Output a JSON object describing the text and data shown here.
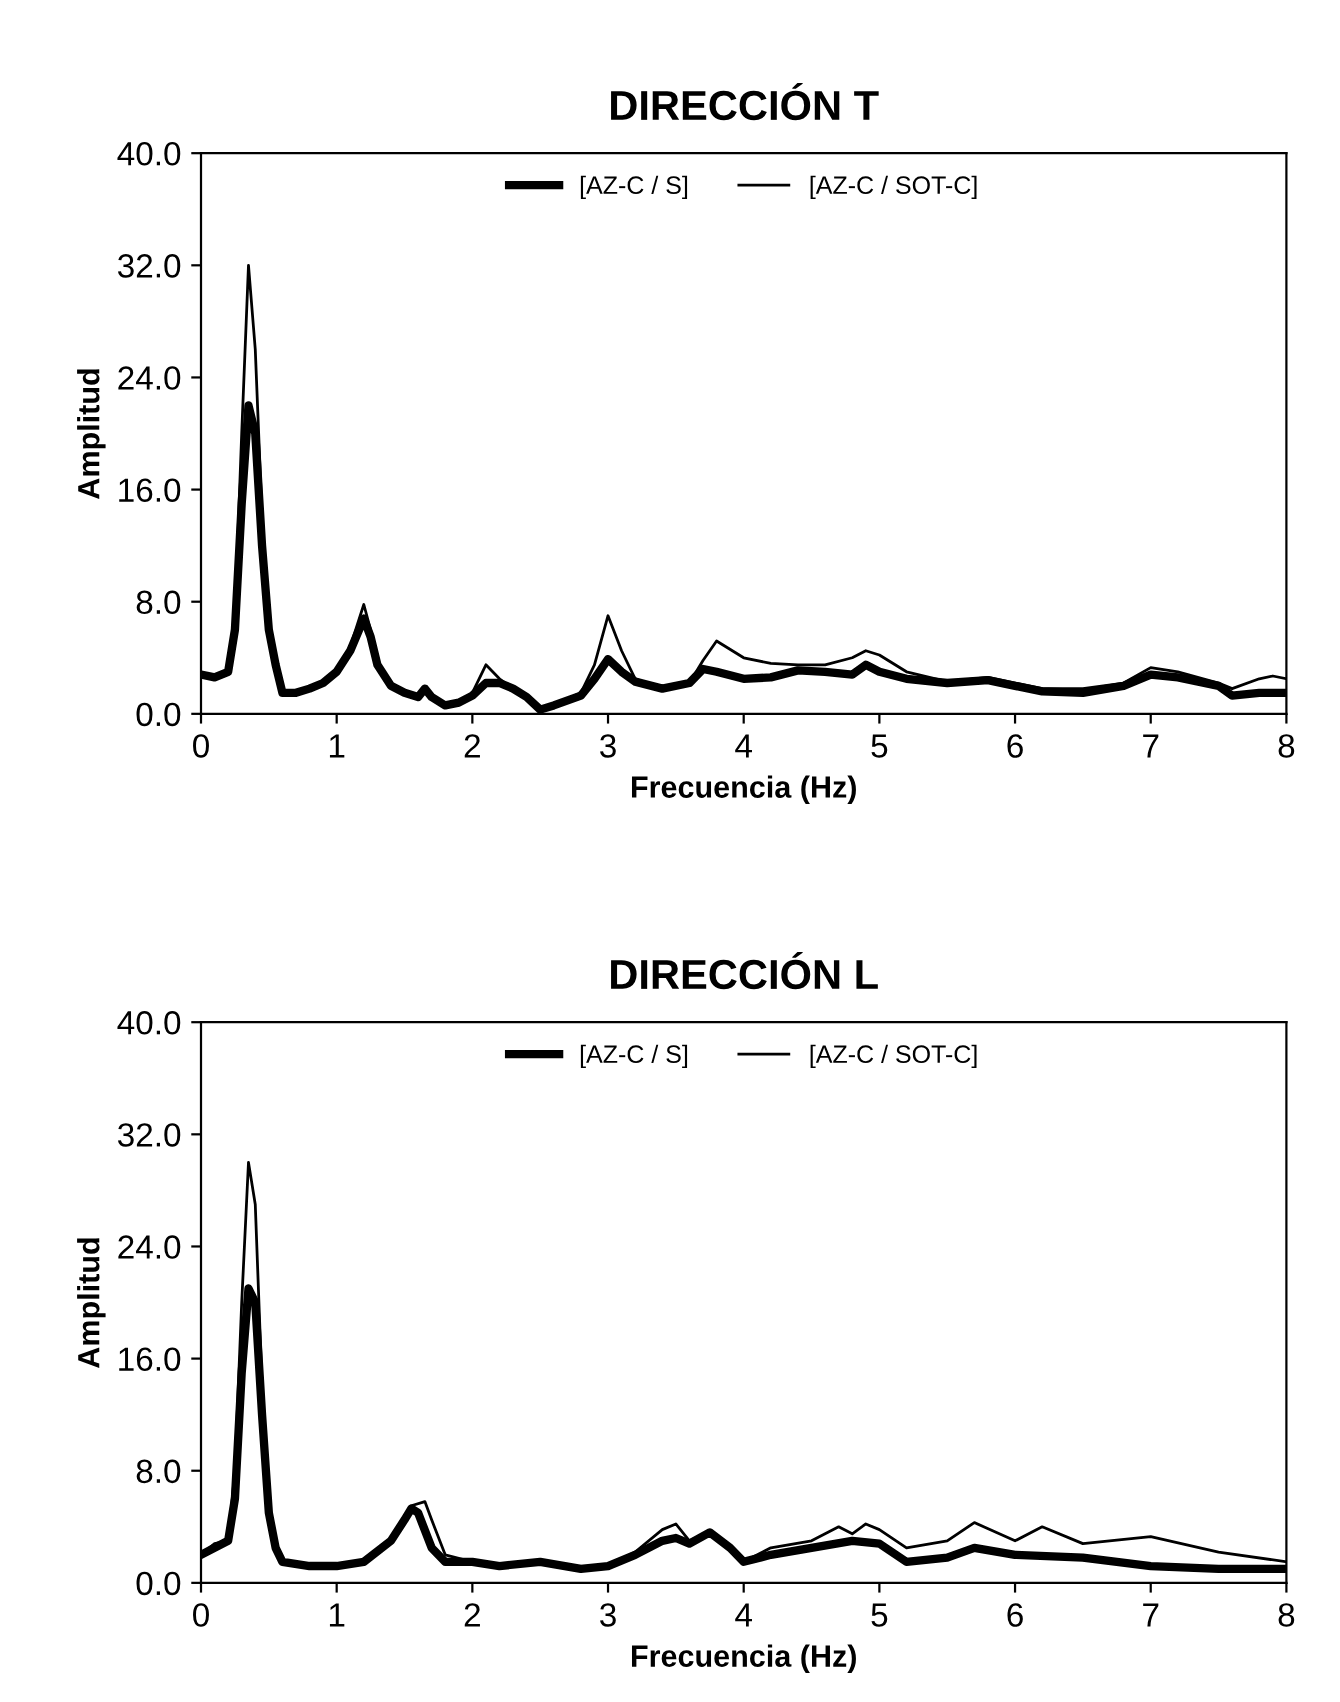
{
  "chart_data": [
    {
      "type": "line",
      "title": "DIRECCIÓN T",
      "xlabel": "Frecuencia (Hz)",
      "ylabel": "Amplitud",
      "xlim": [
        0,
        8
      ],
      "xticks": [
        0,
        1,
        2,
        3,
        4,
        5,
        6,
        7,
        8
      ],
      "ylim": [
        0,
        40
      ],
      "yticks": [
        {
          "value": 0,
          "label": "0.0"
        },
        {
          "value": 8,
          "label": "8.0"
        },
        {
          "value": 16,
          "label": "16.0"
        },
        {
          "value": 24,
          "label": "24.0"
        },
        {
          "value": 32,
          "label": "32.0"
        },
        {
          "value": 40,
          "label": "40.0"
        }
      ],
      "grid": false,
      "legend": "top",
      "marker": "none",
      "line_style": "solid",
      "series": [
        {
          "name": "[AZ-C / S]",
          "color": "#000000",
          "x": [
            0,
            0.1,
            0.2,
            0.25,
            0.3,
            0.35,
            0.4,
            0.45,
            0.5,
            0.55,
            0.6,
            0.7,
            0.8,
            0.9,
            1.0,
            1.1,
            1.2,
            1.25,
            1.3,
            1.4,
            1.5,
            1.6,
            1.65,
            1.7,
            1.8,
            1.9,
            2.0,
            2.1,
            2.2,
            2.3,
            2.4,
            2.5,
            2.6,
            2.8,
            2.9,
            3.0,
            3.1,
            3.2,
            3.4,
            3.6,
            3.7,
            3.8,
            4.0,
            4.2,
            4.4,
            4.6,
            4.8,
            4.9,
            5.0,
            5.2,
            5.5,
            5.8,
            6.0,
            6.2,
            6.5,
            6.8,
            7.0,
            7.2,
            7.5,
            7.6,
            7.8,
            8.0
          ],
          "values": [
            2.8,
            2.6,
            3.0,
            6,
            15,
            22,
            20,
            12,
            6,
            3.5,
            1.5,
            1.5,
            1.8,
            2.2,
            3.0,
            4.5,
            6.8,
            5.5,
            3.5,
            2.0,
            1.5,
            1.2,
            1.8,
            1.2,
            0.6,
            0.8,
            1.3,
            2.2,
            2.2,
            1.8,
            1.2,
            0.3,
            0.6,
            1.3,
            2.5,
            3.9,
            3.0,
            2.3,
            1.8,
            2.2,
            3.2,
            3.0,
            2.5,
            2.6,
            3.1,
            3.0,
            2.8,
            3.5,
            3.0,
            2.5,
            2.2,
            2.4,
            2.0,
            1.6,
            1.5,
            2.0,
            2.8,
            2.6,
            2.0,
            1.3,
            1.5,
            1.5
          ]
        },
        {
          "name": "[AZ-C / SOT-C]",
          "color": "#000000",
          "x": [
            0,
            0.1,
            0.2,
            0.25,
            0.3,
            0.35,
            0.4,
            0.45,
            0.5,
            0.55,
            0.6,
            0.7,
            0.8,
            0.9,
            1.0,
            1.1,
            1.2,
            1.25,
            1.3,
            1.4,
            1.5,
            1.6,
            1.65,
            1.7,
            1.8,
            1.9,
            2.0,
            2.1,
            2.2,
            2.3,
            2.4,
            2.5,
            2.6,
            2.8,
            2.9,
            3.0,
            3.1,
            3.2,
            3.4,
            3.6,
            3.7,
            3.8,
            4.0,
            4.2,
            4.4,
            4.6,
            4.8,
            4.9,
            5.0,
            5.2,
            5.5,
            5.8,
            6.0,
            6.2,
            6.5,
            6.8,
            7.0,
            7.2,
            7.5,
            7.6,
            7.8,
            7.9,
            8.0
          ],
          "values": [
            2.8,
            2.6,
            3.0,
            7,
            20,
            32,
            26,
            14,
            6,
            3.5,
            1.5,
            1.5,
            1.8,
            2.2,
            3.0,
            4.8,
            7.8,
            6.0,
            3.5,
            2.0,
            1.5,
            1.2,
            1.8,
            1.2,
            0.6,
            0.8,
            1.5,
            3.5,
            2.5,
            1.8,
            1.2,
            0.3,
            0.6,
            1.5,
            3.5,
            7.0,
            4.5,
            2.5,
            1.8,
            2.2,
            3.8,
            5.2,
            4.0,
            3.6,
            3.5,
            3.5,
            4.0,
            4.5,
            4.2,
            3.0,
            2.3,
            2.6,
            2.2,
            1.8,
            1.8,
            2.2,
            3.3,
            3.0,
            2.2,
            1.8,
            2.5,
            2.7,
            2.5
          ]
        }
      ]
    },
    {
      "type": "line",
      "title": "DIRECCIÓN L",
      "xlabel": "Frecuencia (Hz)",
      "ylabel": "Amplitud",
      "xlim": [
        0,
        8
      ],
      "xticks": [
        0,
        1,
        2,
        3,
        4,
        5,
        6,
        7,
        8
      ],
      "ylim": [
        0,
        40
      ],
      "yticks": [
        {
          "value": 0,
          "label": "0.0"
        },
        {
          "value": 8,
          "label": "8.0"
        },
        {
          "value": 16,
          "label": "16.0"
        },
        {
          "value": 24,
          "label": "24.0"
        },
        {
          "value": 32,
          "label": "32.0"
        },
        {
          "value": 40,
          "label": "40.0"
        }
      ],
      "grid": false,
      "legend": "top",
      "marker": "none",
      "line_style": "solid",
      "series": [
        {
          "name": "[AZ-C / S]",
          "color": "#000000",
          "x": [
            0,
            0.1,
            0.2,
            0.25,
            0.3,
            0.35,
            0.4,
            0.45,
            0.5,
            0.55,
            0.6,
            0.8,
            1.0,
            1.2,
            1.4,
            1.5,
            1.55,
            1.6,
            1.7,
            1.8,
            2.0,
            2.2,
            2.5,
            2.8,
            3.0,
            3.2,
            3.4,
            3.5,
            3.6,
            3.75,
            3.9,
            4.0,
            4.2,
            4.5,
            4.8,
            5.0,
            5.2,
            5.5,
            5.7,
            6.0,
            6.5,
            7.0,
            7.5,
            8.0
          ],
          "values": [
            2.0,
            2.5,
            3.0,
            6,
            15,
            21,
            20,
            12,
            5,
            2.5,
            1.5,
            1.2,
            1.2,
            1.5,
            3.0,
            4.5,
            5.3,
            5.0,
            2.5,
            1.5,
            1.5,
            1.2,
            1.5,
            1.0,
            1.2,
            2.0,
            3.0,
            3.2,
            2.8,
            3.6,
            2.5,
            1.5,
            2.0,
            2.5,
            3.0,
            2.8,
            1.5,
            1.8,
            2.5,
            2.0,
            1.8,
            1.2,
            1.0,
            1.0
          ]
        },
        {
          "name": "[AZ-C / SOT-C]",
          "color": "#000000",
          "x": [
            0,
            0.1,
            0.2,
            0.25,
            0.3,
            0.35,
            0.4,
            0.45,
            0.5,
            0.55,
            0.6,
            0.8,
            1.0,
            1.2,
            1.4,
            1.5,
            1.55,
            1.65,
            1.7,
            1.8,
            2.0,
            2.2,
            2.5,
            2.8,
            3.0,
            3.2,
            3.4,
            3.5,
            3.6,
            3.75,
            3.9,
            4.0,
            4.2,
            4.5,
            4.7,
            4.8,
            4.9,
            5.0,
            5.2,
            5.5,
            5.7,
            6.0,
            6.2,
            6.5,
            7.0,
            7.5,
            8.0
          ],
          "values": [
            2.0,
            2.8,
            3.0,
            8,
            20,
            30,
            27,
            14,
            6,
            2.5,
            1.5,
            1.2,
            1.2,
            1.5,
            3.0,
            4.5,
            5.5,
            5.8,
            4.5,
            2.0,
            1.5,
            1.2,
            1.5,
            1.0,
            1.2,
            2.2,
            3.8,
            4.2,
            3.0,
            3.6,
            2.5,
            1.5,
            2.5,
            3.0,
            4.0,
            3.5,
            4.2,
            3.8,
            2.5,
            3.0,
            4.3,
            3.0,
            4.0,
            2.8,
            3.3,
            2.2,
            1.5
          ]
        }
      ]
    }
  ]
}
